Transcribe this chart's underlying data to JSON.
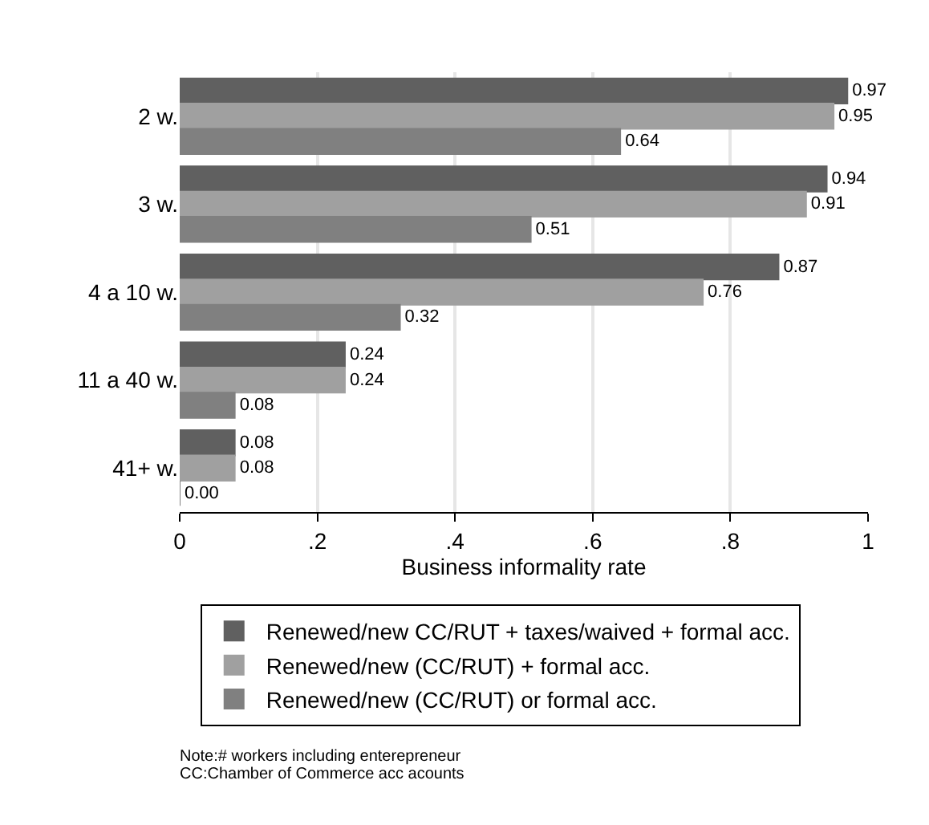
{
  "chart_data": {
    "type": "bar",
    "orientation": "horizontal",
    "xlabel": "Business informality rate",
    "categories": [
      "2 w.",
      "3 w.",
      "4 a 10 w.",
      "11 a 40 w.",
      "41+ w."
    ],
    "series": [
      {
        "name": "Renewed/new CC/RUT + taxes/waived + formal acc.",
        "color": "#606060",
        "values": [
          0.97,
          0.94,
          0.87,
          0.24,
          0.08
        ],
        "value_labels": [
          "0.97",
          "0.94",
          "0.87",
          "0.24",
          "0.08"
        ]
      },
      {
        "name": "Renewed/new (CC/RUT) + formal acc.",
        "color": "#a0a0a0",
        "values": [
          0.95,
          0.91,
          0.76,
          0.24,
          0.08
        ],
        "value_labels": [
          "0.95",
          "0.91",
          "0.76",
          "0.24",
          "0.08"
        ]
      },
      {
        "name": "Renewed/new (CC/RUT) or formal acc.",
        "color": "#808080",
        "values": [
          0.64,
          0.51,
          0.32,
          0.08,
          0.0
        ],
        "value_labels": [
          "0.64",
          "0.51",
          "0.32",
          "0.08",
          "0.00"
        ]
      }
    ],
    "xlim": [
      0,
      1
    ],
    "xticks": [
      0,
      {
        "value": 0.2,
        "label": ".2"
      },
      {
        "value": 0.4,
        "label": ".4"
      },
      {
        "value": 0.6,
        "label": ".6"
      },
      {
        "value": 0.8,
        "label": ".8"
      },
      1
    ],
    "grid": "x",
    "legend": "bottom",
    "annotations": [
      "Note:# workers including enterepreneur",
      "CC:Chamber of Commerce acc acounts"
    ]
  }
}
